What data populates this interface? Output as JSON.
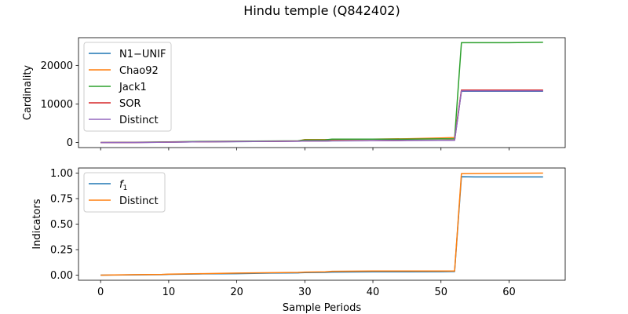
{
  "figure": {
    "title": "Hindu temple (Q842402)"
  },
  "chart_data": [
    {
      "type": "line",
      "ylabel": "Cardinality",
      "xlabel": "",
      "xlim": [
        -3.25,
        68.25
      ],
      "ylim": [
        -1300,
        27200
      ],
      "xticks": [
        0,
        10,
        20,
        30,
        40,
        50,
        60
      ],
      "xticklabels_visible": false,
      "yticks": [
        0,
        10000,
        20000
      ],
      "yticklabels": [
        "0",
        "10000",
        "20000"
      ],
      "legend_position": "upper-left",
      "series": [
        {
          "name": "N1−UNIF",
          "color": "#1f77b4",
          "x": [
            0,
            5,
            10,
            15,
            20,
            25,
            29,
            30,
            33,
            34,
            40,
            45,
            50,
            52,
            53,
            60,
            65
          ],
          "y": [
            0,
            30,
            100,
            200,
            250,
            300,
            350,
            400,
            420,
            450,
            500,
            550,
            600,
            620,
            13300,
            13300,
            13300
          ]
        },
        {
          "name": "Chao92",
          "color": "#ff7f0e",
          "x": [
            0,
            5,
            10,
            15,
            20,
            25,
            29,
            30,
            33,
            34,
            40,
            45,
            50,
            52,
            53,
            60,
            65
          ],
          "y": [
            0,
            50,
            150,
            250,
            300,
            350,
            400,
            800,
            800,
            800,
            900,
            1000,
            1200,
            1300,
            13500,
            13500,
            13500
          ]
        },
        {
          "name": "Jack1",
          "color": "#2ca02c",
          "x": [
            0,
            5,
            10,
            15,
            20,
            25,
            29,
            30,
            33,
            34,
            40,
            45,
            50,
            52,
            53,
            60,
            65
          ],
          "y": [
            0,
            60,
            180,
            300,
            350,
            400,
            450,
            700,
            720,
            900,
            900,
            900,
            950,
            1000,
            25900,
            25900,
            26000
          ]
        },
        {
          "name": "SOR",
          "color": "#d62728",
          "x": [
            0,
            5,
            10,
            15,
            20,
            25,
            29,
            30,
            33,
            34,
            40,
            45,
            50,
            52,
            53,
            60,
            65
          ],
          "y": [
            0,
            30,
            120,
            200,
            260,
            310,
            360,
            420,
            440,
            470,
            520,
            570,
            620,
            650,
            13600,
            13600,
            13600
          ]
        },
        {
          "name": "Distinct",
          "color": "#9467bd",
          "x": [
            0,
            5,
            10,
            15,
            20,
            25,
            29,
            30,
            33,
            34,
            40,
            45,
            50,
            52,
            53,
            60,
            65
          ],
          "y": [
            0,
            30,
            100,
            200,
            250,
            300,
            350,
            400,
            420,
            450,
            500,
            550,
            600,
            620,
            13400,
            13400,
            13400
          ]
        }
      ]
    },
    {
      "type": "line",
      "ylabel": "Indicators",
      "xlabel": "Sample Periods",
      "xlim": [
        -3.25,
        68.25
      ],
      "ylim": [
        -0.05,
        1.05
      ],
      "xticks": [
        0,
        10,
        20,
        30,
        40,
        50,
        60
      ],
      "xticklabels": [
        "0",
        "10",
        "20",
        "30",
        "40",
        "50",
        "60"
      ],
      "yticks": [
        0,
        0.25,
        0.5,
        0.75,
        1.0
      ],
      "yticklabels": [
        "0.00",
        "0.25",
        "0.50",
        "0.75",
        "1.00"
      ],
      "legend_position": "upper-left",
      "series": [
        {
          "name": "f1",
          "color": "#1f77b4",
          "x": [
            0,
            5,
            9,
            10,
            15,
            20,
            25,
            29,
            30,
            33,
            34,
            40,
            45,
            50,
            52,
            53,
            55,
            60,
            65
          ],
          "y": [
            0.0,
            0.003,
            0.005,
            0.008,
            0.012,
            0.015,
            0.02,
            0.022,
            0.025,
            0.027,
            0.03,
            0.032,
            0.033,
            0.034,
            0.035,
            0.965,
            0.962,
            0.962,
            0.962
          ]
        },
        {
          "name": "Distinct",
          "color": "#ff7f0e",
          "x": [
            0,
            5,
            9,
            10,
            15,
            20,
            25,
            29,
            30,
            33,
            34,
            40,
            45,
            50,
            52,
            53,
            60,
            65
          ],
          "y": [
            0.0,
            0.005,
            0.007,
            0.01,
            0.015,
            0.02,
            0.024,
            0.027,
            0.03,
            0.032,
            0.038,
            0.04,
            0.04,
            0.04,
            0.04,
            0.995,
            0.998,
            1.0
          ]
        }
      ]
    }
  ]
}
